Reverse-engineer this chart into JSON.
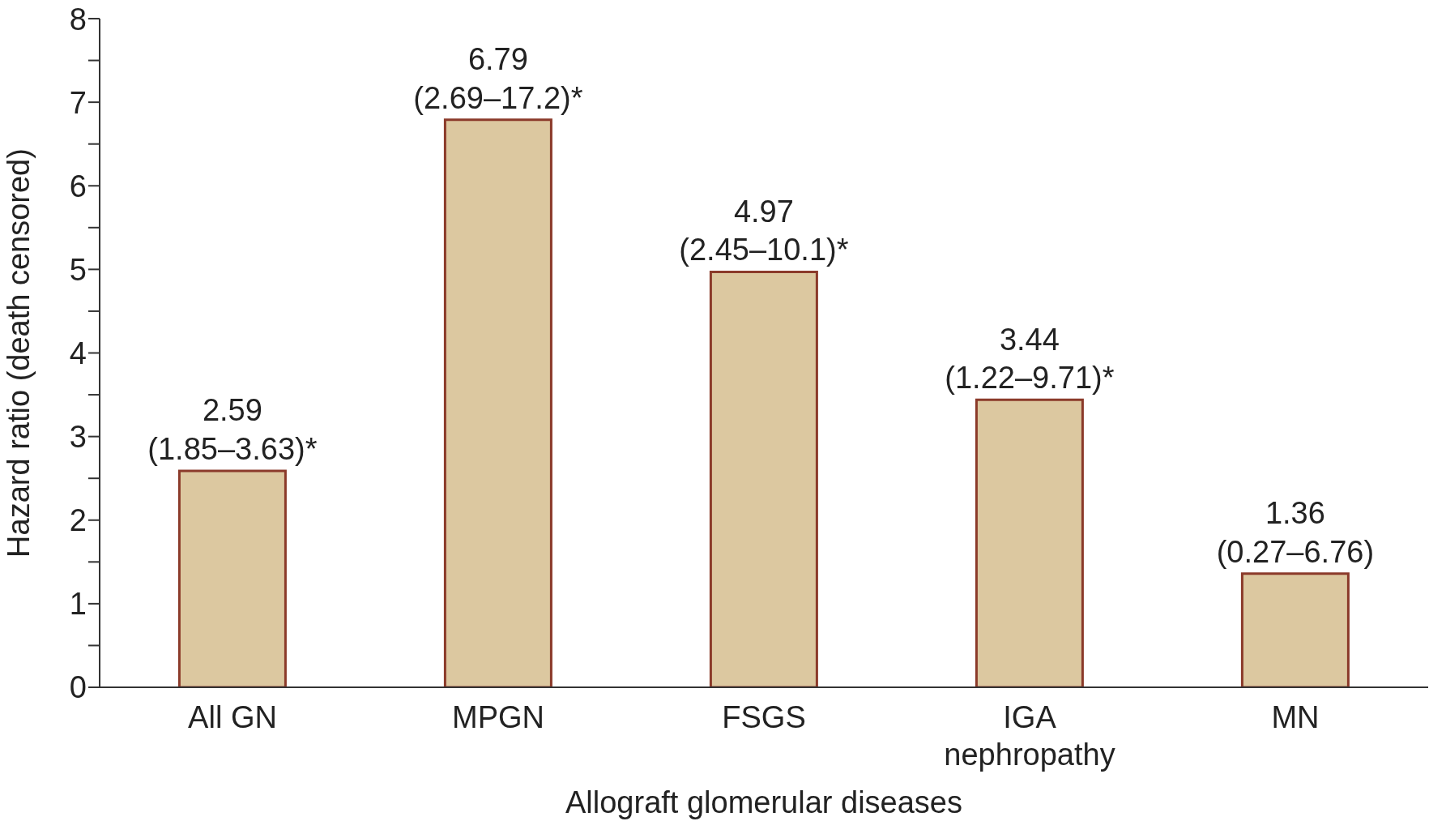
{
  "chart_data": {
    "type": "bar",
    "xlabel": "Allograft glomerular diseases",
    "ylabel": "Hazard ratio (death censored)",
    "categories": [
      "All GN",
      "MPGN",
      "FSGS",
      "IGA nephropathy",
      "MN"
    ],
    "values": [
      2.59,
      6.79,
      4.97,
      3.44,
      1.36
    ],
    "value_labels": [
      "2.59\n(1.85–3.63)*",
      "6.79\n(2.69–17.2)*",
      "4.97\n(2.45–10.1)*",
      "3.44\n(1.22–9.71)*",
      "1.36\n(0.27–6.76)"
    ],
    "color": "#dcc8a0",
    "ylim": [
      0,
      8
    ],
    "yticks": [
      0,
      {
        "value": 0.5,
        "label": null
      },
      1,
      {
        "value": 1.5,
        "label": null
      },
      2,
      {
        "value": 2.5,
        "label": null
      },
      3,
      {
        "value": 3.5,
        "label": null
      },
      4,
      {
        "value": 4.5,
        "label": null
      },
      5,
      {
        "value": 5.5,
        "label": null
      },
      6,
      {
        "value": 6.5,
        "label": null
      },
      7,
      {
        "value": 7.5,
        "label": null
      },
      8
    ],
    "grid": false,
    "legend": false
  }
}
